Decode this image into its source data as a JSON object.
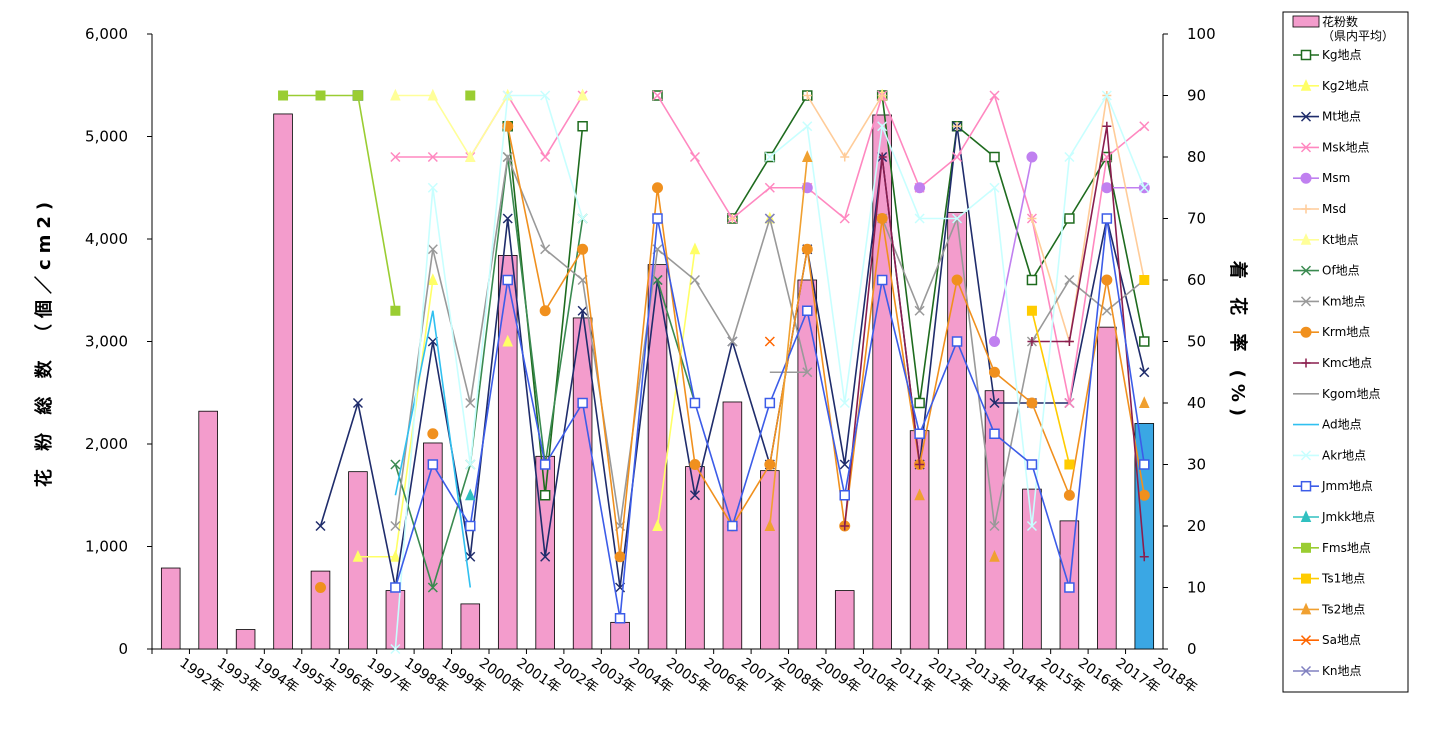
{
  "chart_data": {
    "type": "bar+line",
    "categories": [
      "1992年",
      "1993年",
      "1994年",
      "1995年",
      "1996年",
      "1997年",
      "1998年",
      "1999年",
      "2000年",
      "2001年",
      "2002年",
      "2003年",
      "2004年",
      "2005年",
      "2006年",
      "2007年",
      "2008年",
      "2009年",
      "2010年",
      "2011年",
      "2012年",
      "2013年",
      "2014年",
      "2015年",
      "2016年",
      "2017年",
      "2018年"
    ],
    "ylabel_left": "花 粉 総 数 （個／cm2)",
    "ylabel_right": "着 花 率 (%)",
    "ylim_left": [
      0,
      6000
    ],
    "ylim_right": [
      0,
      100
    ],
    "yticks_left": [
      "0",
      "1,000",
      "2,000",
      "3,000",
      "4,000",
      "5,000",
      "6,000"
    ],
    "yticks_right": [
      "0",
      "10",
      "20",
      "30",
      "40",
      "50",
      "60",
      "70",
      "80",
      "90",
      "100"
    ],
    "bar_series": {
      "name": "花粉数（県内平均）",
      "values": [
        790,
        2320,
        190,
        5220,
        760,
        1730,
        570,
        2010,
        440,
        3840,
        1880,
        3230,
        260,
        3750,
        1780,
        2410,
        1740,
        3600,
        570,
        5210,
        2130,
        4260,
        2520,
        1560,
        1250,
        3140,
        2200
      ],
      "color": "#f39ccc",
      "highlight_last_color": "#3aa7e4"
    },
    "line_series": [
      {
        "name": "Kg地点",
        "color": "#1e6b1e",
        "marker": "open-square",
        "values": [
          null,
          null,
          null,
          null,
          null,
          90,
          null,
          null,
          null,
          85,
          25,
          85,
          null,
          90,
          null,
          70,
          80,
          90,
          null,
          90,
          40,
          85,
          80,
          60,
          70,
          80,
          50
        ]
      },
      {
        "name": "Kg2地点",
        "color": "#ffff66",
        "marker": "triangle",
        "values": [
          null,
          null,
          null,
          null,
          null,
          15,
          15,
          60,
          null,
          50,
          null,
          90,
          null,
          20,
          65,
          null,
          70,
          null,
          null,
          90,
          null,
          null,
          null,
          null,
          null,
          null,
          null
        ]
      },
      {
        "name": "Mt地点",
        "color": "#1f2c6b",
        "marker": "x",
        "values": [
          null,
          null,
          null,
          null,
          20,
          40,
          10,
          50,
          15,
          70,
          15,
          55,
          10,
          60,
          25,
          50,
          30,
          65,
          30,
          80,
          30,
          85,
          40,
          40,
          40,
          70,
          45
        ]
      },
      {
        "name": "Msk地点",
        "color": "#ff88c0",
        "marker": "x",
        "values": [
          null,
          null,
          null,
          null,
          null,
          null,
          80,
          80,
          80,
          90,
          80,
          90,
          null,
          90,
          80,
          70,
          75,
          75,
          70,
          90,
          75,
          80,
          90,
          70,
          40,
          80,
          85
        ]
      },
      {
        "name": "Msm",
        "color": "#c080f0",
        "marker": "circle",
        "values": [
          null,
          null,
          null,
          null,
          null,
          null,
          null,
          null,
          null,
          null,
          null,
          null,
          null,
          null,
          null,
          null,
          null,
          75,
          null,
          null,
          75,
          null,
          50,
          80,
          null,
          75,
          75
        ]
      },
      {
        "name": "Msd",
        "color": "#ffcc99",
        "marker": "plus",
        "values": [
          null,
          null,
          null,
          null,
          null,
          null,
          null,
          null,
          null,
          null,
          null,
          null,
          null,
          null,
          null,
          70,
          null,
          90,
          80,
          90,
          null,
          85,
          null,
          70,
          50,
          90,
          60
        ]
      },
      {
        "name": "Kt地点",
        "color": "#ffff99",
        "marker": "triangle",
        "values": [
          null,
          null,
          null,
          null,
          null,
          null,
          90,
          90,
          80,
          90,
          null,
          90,
          null,
          null,
          null,
          null,
          null,
          null,
          null,
          null,
          null,
          null,
          null,
          null,
          null,
          null,
          null
        ]
      },
      {
        "name": "Of地点",
        "color": "#3a8a50",
        "marker": "x",
        "values": [
          null,
          null,
          null,
          null,
          null,
          null,
          30,
          10,
          30,
          80,
          30,
          70,
          null,
          60,
          40,
          null,
          null,
          null,
          null,
          null,
          null,
          null,
          null,
          null,
          null,
          null,
          null
        ]
      },
      {
        "name": "Km地点",
        "color": "#999999",
        "marker": "x",
        "values": [
          null,
          null,
          null,
          null,
          null,
          null,
          20,
          65,
          40,
          80,
          65,
          60,
          20,
          65,
          60,
          50,
          70,
          45,
          null,
          70,
          55,
          70,
          20,
          50,
          60,
          55,
          60
        ]
      },
      {
        "name": "Krm地点",
        "color": "#f0901e",
        "marker": "circle",
        "values": [
          null,
          null,
          null,
          null,
          10,
          null,
          null,
          35,
          null,
          85,
          55,
          65,
          15,
          75,
          30,
          20,
          30,
          65,
          20,
          70,
          30,
          60,
          45,
          40,
          25,
          60,
          25
        ]
      },
      {
        "name": "Kmc地点",
        "color": "#8a1e4e",
        "marker": "plus",
        "values": [
          null,
          null,
          null,
          null,
          null,
          null,
          null,
          null,
          null,
          null,
          null,
          null,
          null,
          null,
          null,
          null,
          null,
          null,
          20,
          80,
          30,
          null,
          null,
          50,
          50,
          85,
          15
        ]
      },
      {
        "name": "Kgom地点",
        "color": "#999999",
        "marker": "none",
        "values": [
          null,
          null,
          null,
          null,
          null,
          null,
          null,
          null,
          null,
          null,
          null,
          null,
          null,
          null,
          null,
          null,
          45,
          45,
          null,
          null,
          null,
          null,
          null,
          null,
          null,
          null,
          null
        ]
      },
      {
        "name": "Ad地点",
        "color": "#30c0f0",
        "marker": "none",
        "values": [
          null,
          null,
          null,
          null,
          null,
          null,
          25,
          55,
          10,
          null,
          null,
          null,
          null,
          null,
          null,
          null,
          null,
          null,
          null,
          null,
          null,
          null,
          null,
          null,
          null,
          null,
          null
        ]
      },
      {
        "name": "Akr地点",
        "color": "#c8ffff",
        "marker": "x",
        "values": [
          null,
          null,
          null,
          null,
          null,
          null,
          0,
          75,
          30,
          90,
          90,
          70,
          null,
          null,
          null,
          null,
          80,
          85,
          40,
          85,
          70,
          70,
          75,
          20,
          80,
          90,
          75
        ]
      },
      {
        "name": "Jmm地点",
        "color": "#3c5ce8",
        "marker": "open-square",
        "values": [
          null,
          null,
          null,
          null,
          null,
          null,
          10,
          30,
          20,
          60,
          30,
          40,
          5,
          70,
          40,
          20,
          40,
          55,
          25,
          60,
          35,
          50,
          35,
          30,
          10,
          70,
          30
        ]
      },
      {
        "name": "Jmkk地点",
        "color": "#30c0c0",
        "marker": "triangle",
        "values": [
          null,
          null,
          null,
          null,
          null,
          null,
          null,
          null,
          25,
          null,
          null,
          null,
          null,
          null,
          null,
          null,
          null,
          null,
          null,
          null,
          null,
          null,
          null,
          null,
          null,
          null,
          null
        ]
      },
      {
        "name": "Fms地点",
        "color": "#9acd32",
        "marker": "filled-square",
        "values": [
          null,
          null,
          null,
          90,
          90,
          90,
          55,
          null,
          90,
          null,
          null,
          null,
          null,
          null,
          null,
          null,
          null,
          null,
          null,
          null,
          null,
          null,
          null,
          null,
          null,
          null,
          null
        ]
      },
      {
        "name": "Ts1地点",
        "color": "#ffcc00",
        "marker": "filled-square",
        "values": [
          null,
          null,
          null,
          null,
          null,
          null,
          null,
          null,
          null,
          null,
          null,
          null,
          null,
          null,
          null,
          null,
          null,
          null,
          null,
          null,
          null,
          null,
          null,
          55,
          30,
          null,
          60
        ]
      },
      {
        "name": "Ts2地点",
        "color": "#f0a030",
        "marker": "triangle",
        "values": [
          null,
          null,
          null,
          null,
          null,
          null,
          null,
          null,
          null,
          null,
          null,
          null,
          null,
          null,
          null,
          null,
          20,
          80,
          null,
          null,
          25,
          null,
          15,
          null,
          null,
          null,
          40
        ]
      },
      {
        "name": "Sa地点",
        "color": "#ff6600",
        "marker": "x",
        "values": [
          null,
          null,
          null,
          null,
          null,
          null,
          null,
          null,
          null,
          null,
          null,
          null,
          null,
          null,
          null,
          null,
          50,
          null,
          null,
          null,
          null,
          null,
          null,
          null,
          null,
          null,
          null
        ]
      },
      {
        "name": "Kn地点",
        "color": "#8080c0",
        "marker": "x",
        "values": [
          null,
          null,
          null,
          null,
          null,
          null,
          null,
          null,
          null,
          null,
          null,
          null,
          null,
          null,
          null,
          null,
          70,
          null,
          null,
          null,
          null,
          null,
          null,
          null,
          null,
          null,
          null
        ]
      }
    ],
    "legend_placement": "right",
    "grid": false
  }
}
